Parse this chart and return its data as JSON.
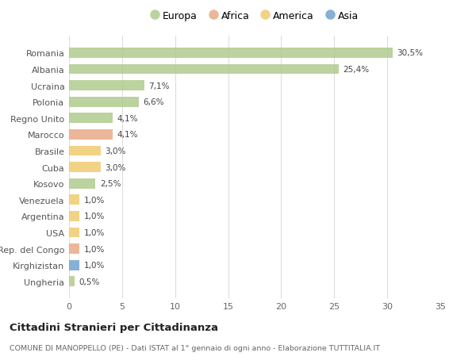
{
  "countries": [
    "Romania",
    "Albania",
    "Ucraina",
    "Polonia",
    "Regno Unito",
    "Marocco",
    "Brasile",
    "Cuba",
    "Kosovo",
    "Venezuela",
    "Argentina",
    "USA",
    "Rep. del Congo",
    "Kirghizistan",
    "Ungheria"
  ],
  "values": [
    30.5,
    25.4,
    7.1,
    6.6,
    4.1,
    4.1,
    3.0,
    3.0,
    2.5,
    1.0,
    1.0,
    1.0,
    1.0,
    1.0,
    0.5
  ],
  "continents": [
    "Europa",
    "Europa",
    "Europa",
    "Europa",
    "Europa",
    "Africa",
    "America",
    "America",
    "Europa",
    "America",
    "America",
    "America",
    "Africa",
    "Asia",
    "Europa"
  ],
  "labels": [
    "30,5%",
    "25,4%",
    "7,1%",
    "6,6%",
    "4,1%",
    "4,1%",
    "3,0%",
    "3,0%",
    "2,5%",
    "1,0%",
    "1,0%",
    "1,0%",
    "1,0%",
    "1,0%",
    "0,5%"
  ],
  "colors": {
    "Europa": "#aec98a",
    "Africa": "#e8a882",
    "America": "#f0c96a",
    "Asia": "#6b9fcf"
  },
  "legend_order": [
    "Europa",
    "Africa",
    "America",
    "Asia"
  ],
  "xlim": [
    0,
    35
  ],
  "xticks": [
    0,
    5,
    10,
    15,
    20,
    25,
    30,
    35
  ],
  "title": "Cittadini Stranieri per Cittadinanza",
  "subtitle": "COMUNE DI MANOPPELLO (PE) - Dati ISTAT al 1° gennaio di ogni anno - Elaborazione TUTTITALIA.IT",
  "bg_color": "#ffffff",
  "grid_color": "#dddddd",
  "bar_alpha": 0.82,
  "bar_height": 0.62
}
